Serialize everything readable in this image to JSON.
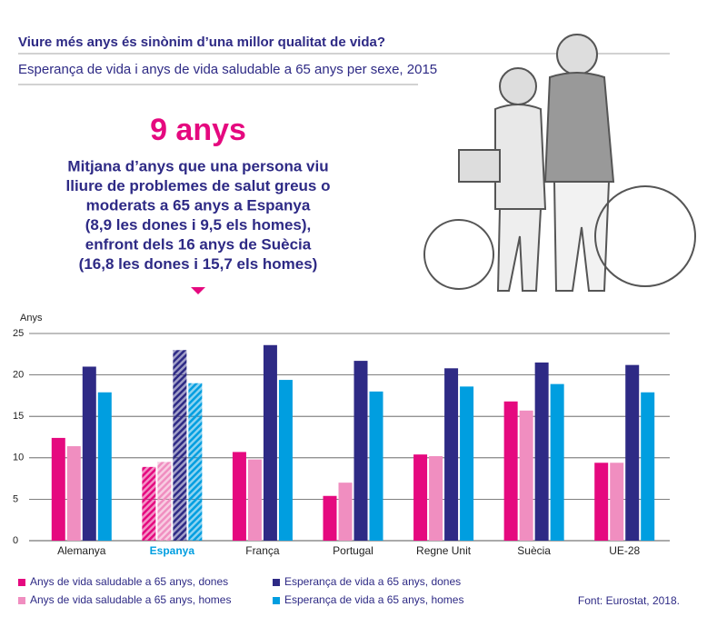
{
  "header": {
    "title": "Viure més anys és sinònim d’una millor qualitat de vida?",
    "subtitle": "Esperança de vida i anys de vida saludable a 65 anys per sexe, 2015"
  },
  "highlight": {
    "headline": "9 anys",
    "lines": [
      "Mitjana d’anys que una persona viu",
      "lliure de problemes de salut greus o",
      "moderats a 65 anys a Espanya",
      "(8,9 les dones i 9,5 els homes),",
      "enfront dels 16 anys de Suècia",
      "(16,8 les dones i 15,7 els homes)"
    ]
  },
  "chart_data": {
    "type": "bar",
    "y_label": "Anys",
    "categories": [
      "Alemanya",
      "Espanya",
      "França",
      "Portugal",
      "Regne Unit",
      "Suècia",
      "UE-28"
    ],
    "highlight": "Espanya",
    "series": [
      {
        "name": "Anys de vida saludable a 65 anys, dones",
        "color": "#e5097f",
        "values": [
          12.4,
          8.9,
          10.7,
          5.4,
          10.4,
          16.8,
          9.4
        ]
      },
      {
        "name": "Anys de vida saludable a 65 anys, homes",
        "color": "#f08ec0",
        "values": [
          11.4,
          9.5,
          9.8,
          7.0,
          10.2,
          15.7,
          9.4
        ]
      },
      {
        "name": "Esperança de vida a 65 anys, dones",
        "color": "#2e2a85",
        "values": [
          21.0,
          23.0,
          23.6,
          21.7,
          20.8,
          21.5,
          21.2
        ]
      },
      {
        "name": "Esperança de vida a 65 anys, homes",
        "color": "#009ee0",
        "values": [
          17.9,
          19.0,
          19.4,
          18.0,
          18.6,
          18.9,
          17.9
        ]
      }
    ],
    "ylim": [
      0,
      25
    ],
    "yticks": [
      0,
      5,
      10,
      15,
      20,
      25
    ],
    "grid": true
  },
  "source": "Font: Eurostat, 2018."
}
